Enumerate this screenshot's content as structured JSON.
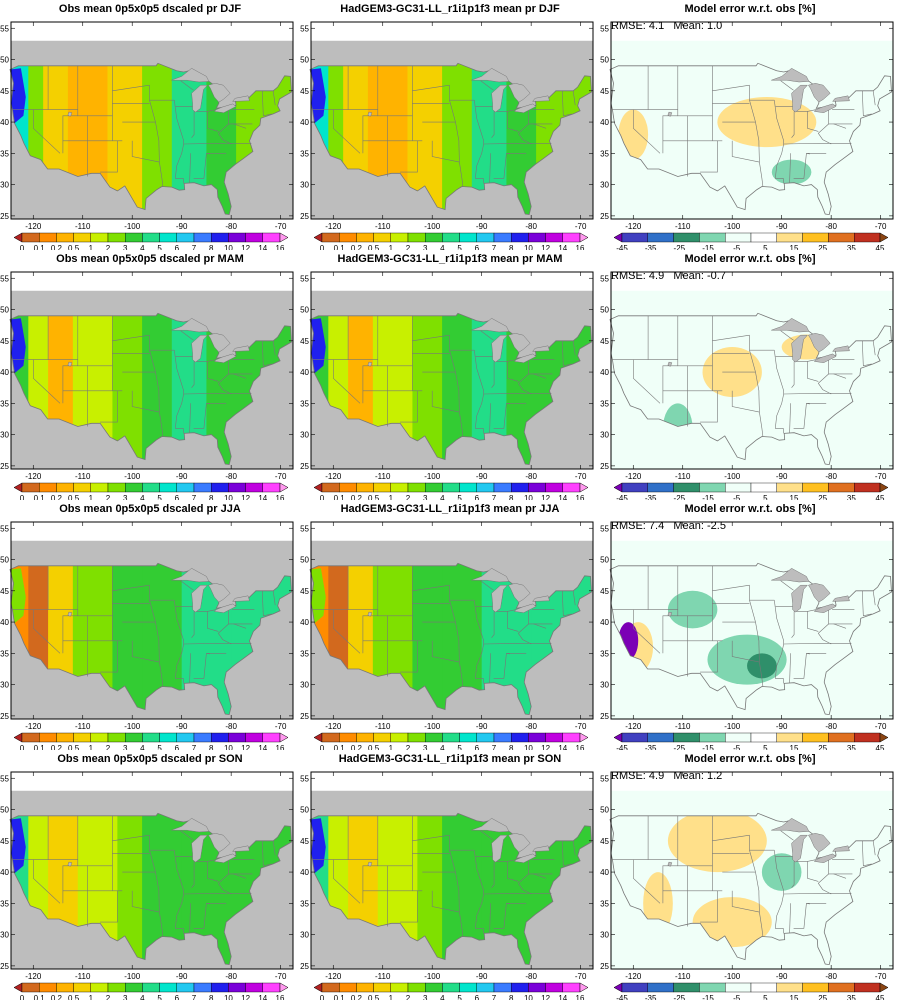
{
  "figure": {
    "lon_ticks": [
      "-120",
      "-110",
      "-100",
      "-90",
      "-80",
      "-70"
    ],
    "lat_ticks": [
      "25",
      "30",
      "35",
      "40",
      "45",
      "50",
      "55"
    ]
  },
  "precip_colorbar": {
    "labels": [
      "0",
      "0.1",
      "0.2",
      "0.5",
      "1",
      "2",
      "3",
      "4",
      "5",
      "6",
      "7",
      "8",
      "10",
      "12",
      "14",
      "16"
    ],
    "colors": [
      "#b22222",
      "#d2691e",
      "#ff8c00",
      "#ffb300",
      "#f4d000",
      "#c8f000",
      "#7fe000",
      "#33cc33",
      "#22dd88",
      "#00e5cc",
      "#22c8f0",
      "#3a7bff",
      "#2020ee",
      "#7a00d9",
      "#c000e0",
      "#ff40ff",
      "#ff99ee"
    ]
  },
  "error_colorbar": {
    "labels": [
      "-45",
      "-35",
      "-25",
      "-15",
      "-5",
      "5",
      "15",
      "25",
      "35",
      "45"
    ],
    "colors": [
      "#7b00b5",
      "#4040c0",
      "#3070c8",
      "#2f8f6a",
      "#7fd6b0",
      "#f0fff8",
      "#ffffff",
      "#ffe08a",
      "#ffc020",
      "#e07020",
      "#c03020",
      "#8b4513"
    ]
  },
  "colors": {
    "ocean": "#bdbdbd",
    "lake": "#bdbdbd",
    "border": "#777777"
  },
  "rows": [
    {
      "season": "DJF",
      "obs_title": "Obs mean 0p5x0p5 dscaled pr DJF",
      "model_title": "HadGEM3-GC31-LL_r1i1p1f3 mean pr DJF",
      "error_title": "Model error w.r.t. obs [%]",
      "stats": "RMSE: 4.1   Mean: 1.0"
    },
    {
      "season": "MAM",
      "obs_title": "Obs mean 0p5x0p5 dscaled pr MAM",
      "model_title": "HadGEM3-GC31-LL_r1i1p1f3 mean pr MAM",
      "error_title": "Model error w.r.t. obs [%]",
      "stats": "RMSE: 4.9   Mean: -0.7"
    },
    {
      "season": "JJA",
      "obs_title": "Obs mean 0p5x0p5 dscaled pr JJA",
      "model_title": "HadGEM3-GC31-LL_r1i1p1f3 mean pr JJA",
      "error_title": "Model error w.r.t. obs [%]",
      "stats": "RMSE: 7.4   Mean: -2.5"
    },
    {
      "season": "SON",
      "obs_title": "Obs mean 0p5x0p5 dscaled pr SON",
      "model_title": "HadGEM3-GC31-LL_r1i1p1f3 mean pr SON",
      "error_title": "Model error w.r.t. obs [%]",
      "stats": "RMSE: 4.9   Mean: 1.2"
    }
  ]
}
